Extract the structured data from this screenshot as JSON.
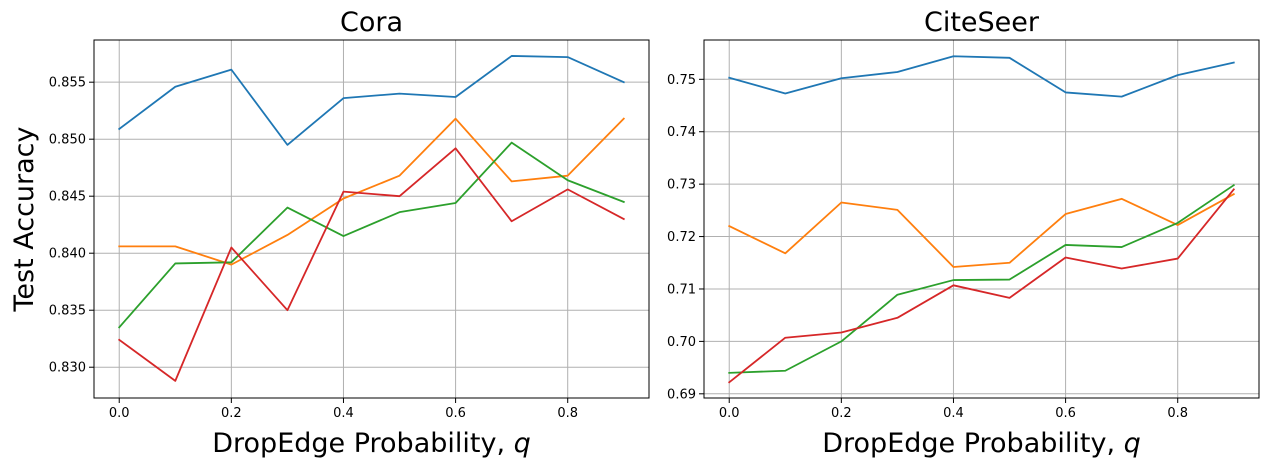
{
  "chart_data": [
    {
      "type": "line",
      "title": "Cora",
      "xlabel": "DropEdge Probability, ",
      "xlabel_var": "q",
      "ylabel": "Test Accuracy",
      "x": [
        0.0,
        0.1,
        0.2,
        0.3,
        0.4,
        0.5,
        0.6,
        0.7,
        0.8,
        0.9
      ],
      "xlim": [
        -0.045,
        0.945
      ],
      "ylim": [
        0.8273,
        0.8587
      ],
      "xticks": [
        0.0,
        0.2,
        0.4,
        0.6,
        0.8
      ],
      "xtick_labels": [
        "0.0",
        "0.2",
        "0.4",
        "0.6",
        "0.8"
      ],
      "yticks": [
        0.83,
        0.835,
        0.84,
        0.845,
        0.85,
        0.855
      ],
      "ytick_labels": [
        "0.830",
        "0.835",
        "0.840",
        "0.845",
        "0.850",
        "0.855"
      ],
      "grid": true,
      "series": [
        {
          "color": "#1f77b4",
          "values": [
            0.8509,
            0.8546,
            0.8561,
            0.8495,
            0.8536,
            0.854,
            0.8537,
            0.8573,
            0.8572,
            0.855
          ]
        },
        {
          "color": "#ff7f0e",
          "values": [
            0.8406,
            0.8406,
            0.839,
            0.8416,
            0.8448,
            0.8468,
            0.8518,
            0.8463,
            0.8468,
            0.8518
          ]
        },
        {
          "color": "#2ca02c",
          "values": [
            0.8335,
            0.8391,
            0.8392,
            0.844,
            0.8415,
            0.8436,
            0.8444,
            0.8497,
            0.8464,
            0.8445
          ]
        },
        {
          "color": "#d62728",
          "values": [
            0.8324,
            0.8288,
            0.8405,
            0.835,
            0.8454,
            0.845,
            0.8492,
            0.8428,
            0.8456,
            0.843
          ]
        }
      ]
    },
    {
      "type": "line",
      "title": "CiteSeer",
      "xlabel": "DropEdge Probability, ",
      "xlabel_var": "q",
      "ylabel": "",
      "x": [
        0.0,
        0.1,
        0.2,
        0.3,
        0.4,
        0.5,
        0.6,
        0.7,
        0.8,
        0.9
      ],
      "xlim": [
        -0.045,
        0.945
      ],
      "ylim": [
        0.6892,
        0.7575
      ],
      "xticks": [
        0.0,
        0.2,
        0.4,
        0.6,
        0.8
      ],
      "xtick_labels": [
        "0.0",
        "0.2",
        "0.4",
        "0.6",
        "0.8"
      ],
      "yticks": [
        0.69,
        0.7,
        0.71,
        0.72,
        0.73,
        0.74,
        0.75
      ],
      "ytick_labels": [
        "0.69",
        "0.70",
        "0.71",
        "0.72",
        "0.73",
        "0.74",
        "0.75"
      ],
      "grid": true,
      "series": [
        {
          "color": "#1f77b4",
          "values": [
            0.7503,
            0.7473,
            0.7502,
            0.7514,
            0.7544,
            0.7541,
            0.7475,
            0.7467,
            0.7508,
            0.7532
          ]
        },
        {
          "color": "#ff7f0e",
          "values": [
            0.722,
            0.7168,
            0.7265,
            0.7251,
            0.7142,
            0.715,
            0.7243,
            0.7272,
            0.7222,
            0.7281
          ]
        },
        {
          "color": "#2ca02c",
          "values": [
            0.694,
            0.6944,
            0.7,
            0.7089,
            0.7117,
            0.7118,
            0.7184,
            0.718,
            0.7226,
            0.7298
          ]
        },
        {
          "color": "#d62728",
          "values": [
            0.6922,
            0.7007,
            0.7017,
            0.7045,
            0.7107,
            0.7083,
            0.716,
            0.7139,
            0.7158,
            0.729
          ]
        }
      ]
    }
  ]
}
